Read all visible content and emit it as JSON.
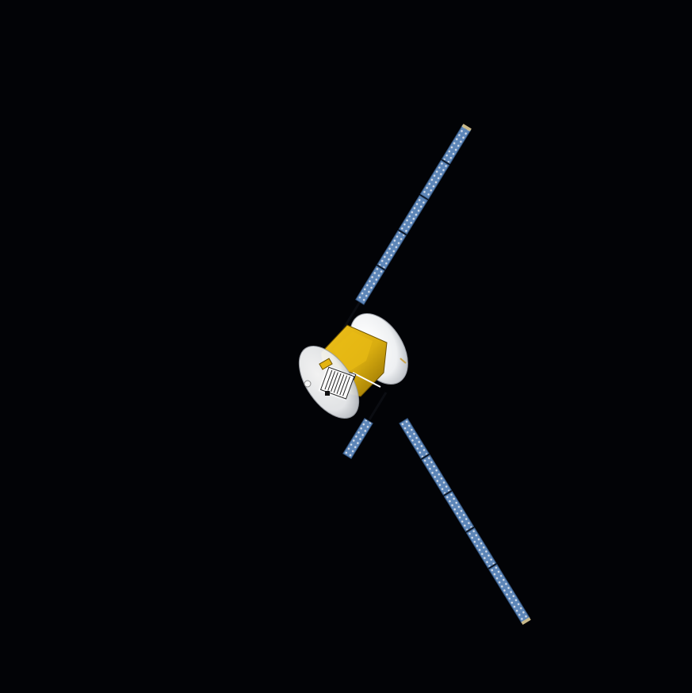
{
  "scene": {
    "subject": "satellite",
    "background_color": "#020306",
    "colors": {
      "solar_panel": "#5d86b8",
      "solar_panel_edge": "#2f4f78",
      "solar_cell": "#d7dee8",
      "gold_foil": "#d9ad10",
      "gold_foil_dark": "#8c6a00",
      "antenna_dish": "#f4f4f4",
      "antenna_shadow": "#bfc3c8",
      "radiator": "#ffffff",
      "truss": "#0b0d12"
    }
  }
}
